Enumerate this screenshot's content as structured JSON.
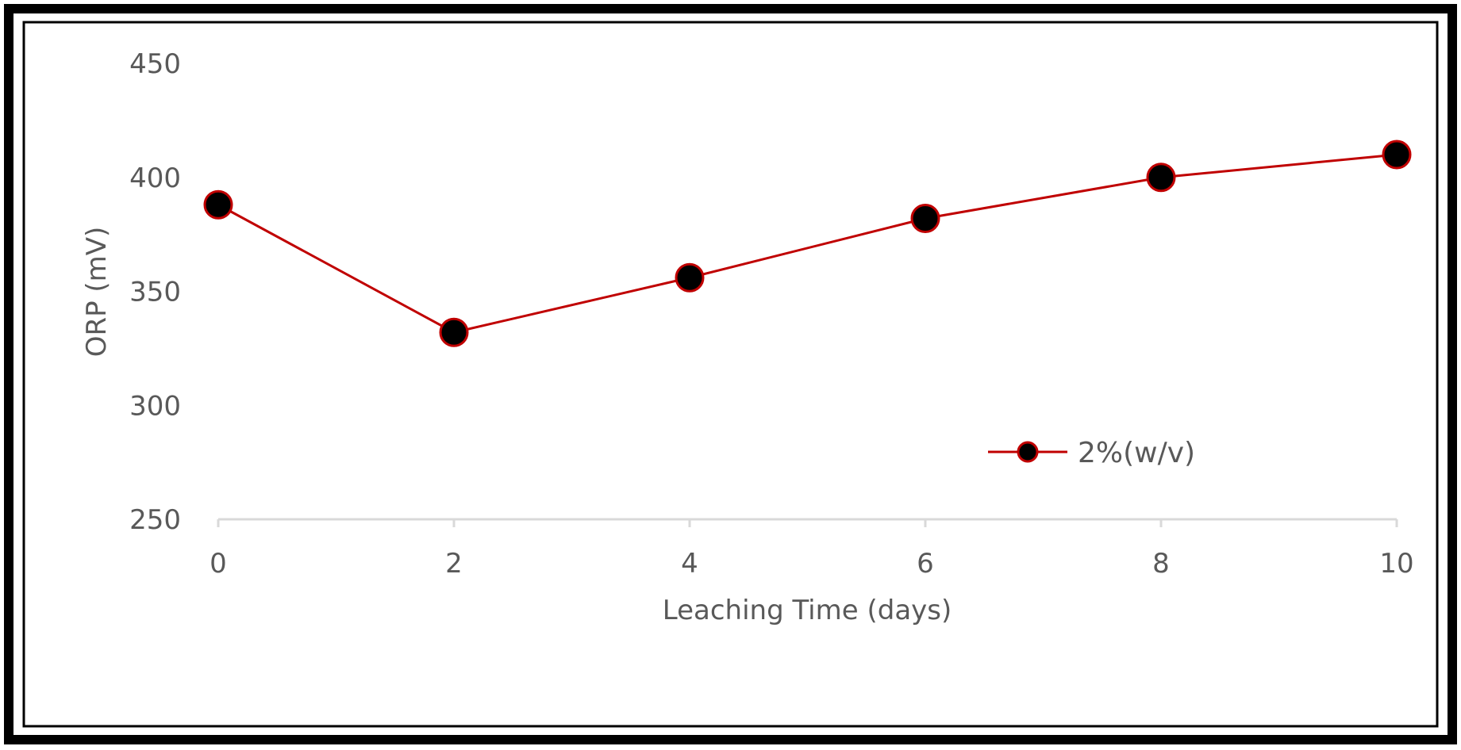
{
  "chart_data": {
    "type": "line",
    "title": "",
    "xlabel": "Leaching Time (days)",
    "ylabel": "ORP (mV)",
    "x": [
      0,
      2,
      4,
      6,
      8,
      10
    ],
    "xlim": [
      0,
      10
    ],
    "ylim": [
      250,
      450
    ],
    "x_ticks": [
      "0",
      "2",
      "4",
      "6",
      "8",
      "10"
    ],
    "y_ticks": [
      "250",
      "300",
      "350",
      "400",
      "450"
    ],
    "grid": false,
    "legend_position": "center-right",
    "series": [
      {
        "name": "2%(w/v)",
        "values": [
          388,
          332,
          356,
          382,
          400,
          410
        ],
        "line_color": "#c00000",
        "marker_color": "#000000"
      }
    ]
  }
}
